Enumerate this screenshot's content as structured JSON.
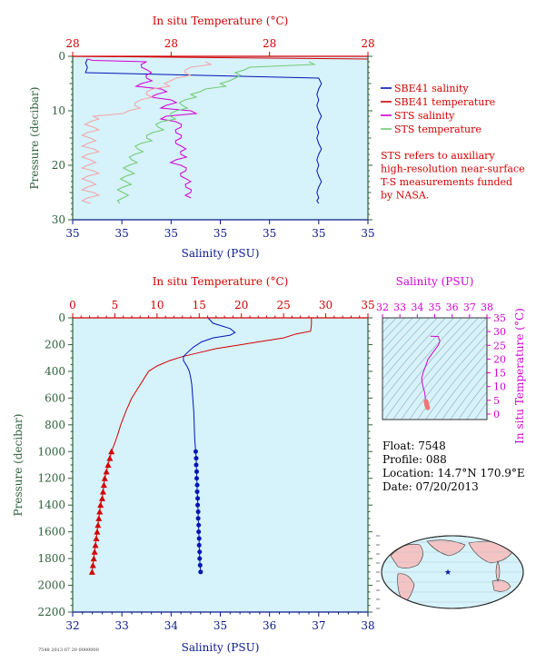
{
  "colors": {
    "bg": "#d6f2fb",
    "red": "#d40000",
    "blue": "#0015b5",
    "magenta": "#d400d4",
    "green": "#6fcb6f",
    "pink": "#f4a4a4",
    "axis_green": "#2e5f3a",
    "axis_blue": "#0a1a8a",
    "land": "#f4c4c4"
  },
  "legend": {
    "items": [
      {
        "label": "SBE41 salinity",
        "color": "#0015b5"
      },
      {
        "label": "SBE41 temperature",
        "color": "#d40000"
      },
      {
        "label": "STS salinity",
        "color": "#d400d4"
      },
      {
        "label": "STS temperature",
        "color": "#6fcb6f"
      }
    ],
    "note": [
      "STS refers to auxiliary",
      "high-resolution near-surface",
      "T-S measurements funded",
      "by NASA."
    ]
  },
  "float_info": {
    "float": "Float: 7548",
    "profile": "Profile: 088",
    "location": "Location: 14.7°N 170.9°E",
    "date": "Date: 07/20/2013"
  },
  "credit": "7548 2013 07 20 0000000",
  "chart_data": [
    {
      "type": "line",
      "id": "near-surface",
      "top_label": "In situ Temperature (°C)",
      "bottom_label": "Salinity (PSU)",
      "ylabel": "Pressure (decibar)",
      "y_ticks": [
        "0",
        "10",
        "20",
        "30"
      ],
      "ylim": [
        0,
        30
      ],
      "top_ticks": [
        "28",
        "28",
        "28",
        "28"
      ],
      "bottom_ticks": [
        "35",
        "35",
        "35",
        "35",
        "35",
        "35",
        "35"
      ],
      "temp_range": [
        27.95,
        28.95
      ],
      "sal_range": [
        34.95,
        35.55
      ],
      "series": [
        {
          "name": "SBE41 salinity",
          "axis": "salinity",
          "y": [
            0.5,
            2,
            4,
            6,
            8,
            10,
            12,
            14,
            16,
            18,
            20,
            22,
            24,
            26,
            27
          ],
          "x": [
            34.98,
            34.98,
            35.45,
            35.45,
            35.45,
            35.45,
            35.45,
            35.45,
            35.45,
            35.45,
            35.45,
            35.45,
            35.45,
            35.45,
            35.45
          ]
        },
        {
          "name": "SBE41 temperature",
          "axis": "temperature",
          "y": [
            0,
            0.5
          ],
          "x": [
            27.95,
            28.95
          ]
        },
        {
          "name": "STS salinity",
          "axis": "salinity",
          "y": [
            0.5,
            1,
            2,
            3,
            4,
            5,
            6,
            7,
            8,
            9,
            10,
            11,
            12,
            13,
            14,
            15,
            16,
            17,
            18,
            19,
            20,
            21,
            22,
            23,
            24,
            25,
            26
          ],
          "x": [
            34.98,
            35.1,
            35.09,
            35.11,
            35.1,
            35.09,
            35.13,
            35.12,
            35.15,
            35.14,
            35.19,
            35.14,
            35.16,
            35.17,
            35.16,
            35.17,
            35.16,
            35.18,
            35.17,
            35.16,
            35.17,
            35.18,
            35.17,
            35.19,
            35.18,
            35.19,
            35.19
          ]
        },
        {
          "name": "STS temperature",
          "axis": "temperature",
          "y": [
            1,
            2,
            3,
            4,
            5,
            6,
            7,
            8,
            9,
            10,
            11,
            12,
            13,
            14,
            15,
            16,
            17,
            18,
            19,
            20,
            21,
            22,
            23,
            24,
            25,
            26,
            27
          ],
          "x": [
            28.75,
            28.55,
            28.5,
            28.5,
            28.45,
            28.4,
            28.35,
            28.33,
            28.32,
            28.3,
            28.28,
            28.25,
            28.24,
            28.22,
            28.2,
            28.18,
            28.17,
            28.16,
            28.15,
            28.14,
            28.14,
            28.13,
            28.13,
            28.12,
            28.12,
            28.12,
            28.11
          ]
        },
        {
          "name": "STS temperature (pink)",
          "axis": "temperature",
          "y": [
            1,
            2,
            3,
            4,
            5,
            6,
            7,
            8,
            9,
            10,
            11,
            12,
            13,
            14,
            15,
            16,
            17,
            18,
            19,
            20,
            21,
            22,
            23,
            24,
            25,
            26,
            27
          ],
          "x": [
            28.4,
            28.35,
            28.33,
            28.3,
            28.26,
            28.22,
            28.2,
            28.18,
            28.16,
            28.14,
            28.02,
            28.01,
            28.02,
            28.0,
            28.01,
            28.0,
            28.02,
            28.0,
            28.01,
            28.0,
            28.02,
            28.0,
            28.01,
            28.0,
            28.02,
            28.0,
            28.01
          ]
        }
      ]
    },
    {
      "type": "line",
      "id": "full-profile",
      "top_label": "In situ Temperature (°C)",
      "bottom_label": "Salinity (PSU)",
      "ylabel": "Pressure (decibar)",
      "y_ticks": [
        "0",
        "200",
        "400",
        "600",
        "800",
        "1000",
        "1200",
        "1400",
        "1600",
        "1800",
        "2000",
        "2200"
      ],
      "ylim": [
        0,
        2200
      ],
      "top_ticks": [
        "0",
        "5",
        "10",
        "15",
        "20",
        "25",
        "30",
        "35"
      ],
      "temp_range": [
        0,
        35
      ],
      "bottom_ticks": [
        "32",
        "33",
        "34",
        "35",
        "36",
        "37",
        "38"
      ],
      "sal_range": [
        32,
        38
      ],
      "salinity": {
        "p": [
          0,
          40,
          80,
          110,
          130,
          150,
          180,
          220,
          260,
          290,
          320,
          360,
          400,
          450,
          500,
          600,
          700,
          800,
          900,
          1000
        ],
        "s": [
          34.75,
          34.85,
          35.2,
          35.3,
          35.2,
          34.85,
          34.62,
          34.45,
          34.33,
          34.25,
          34.25,
          34.32,
          34.37,
          34.4,
          34.42,
          34.44,
          34.46,
          34.47,
          34.48,
          34.5
        ]
      },
      "salinity_points": {
        "p": [
          1000,
          1050,
          1100,
          1150,
          1200,
          1250,
          1300,
          1350,
          1400,
          1450,
          1500,
          1550,
          1600,
          1650,
          1700,
          1750,
          1800,
          1850,
          1900
        ],
        "s": [
          34.5,
          34.51,
          34.51,
          34.52,
          34.52,
          34.53,
          34.53,
          34.54,
          34.54,
          34.55,
          34.55,
          34.56,
          34.56,
          34.57,
          34.57,
          34.58,
          34.58,
          34.59,
          34.6
        ]
      },
      "temperature": {
        "p": [
          0,
          50,
          100,
          120,
          150,
          180,
          200,
          230,
          260,
          290,
          320,
          360,
          400,
          450,
          500,
          600,
          700,
          800,
          900,
          1000
        ],
        "t": [
          28.3,
          28.3,
          28.2,
          26.5,
          25.0,
          22.0,
          20.0,
          17.0,
          15.0,
          13.0,
          11.5,
          10.0,
          9.0,
          8.5,
          8.0,
          7.0,
          6.3,
          5.7,
          5.2,
          4.6
        ]
      },
      "temperature_points": {
        "p": [
          1000,
          1050,
          1100,
          1150,
          1200,
          1250,
          1300,
          1350,
          1400,
          1450,
          1500,
          1550,
          1600,
          1650,
          1700,
          1750,
          1800,
          1850,
          1900
        ],
        "t": [
          4.6,
          4.4,
          4.2,
          4.0,
          3.8,
          3.7,
          3.6,
          3.5,
          3.3,
          3.2,
          3.1,
          3.0,
          2.9,
          2.8,
          2.7,
          2.6,
          2.5,
          2.4,
          2.3
        ]
      }
    },
    {
      "type": "scatter",
      "id": "ts-diagram",
      "top_label": "Salinity (PSU)",
      "right_label": "In situ Temperature (°C)",
      "top_ticks": [
        "32",
        "33",
        "34",
        "35",
        "36",
        "37",
        "38"
      ],
      "sal_range": [
        32,
        38
      ],
      "right_ticks": [
        "0",
        "5",
        "10",
        "15",
        "20",
        "25",
        "30",
        "35"
      ],
      "temp_range": [
        -2,
        35
      ],
      "trace": {
        "s": [
          34.75,
          34.85,
          35.2,
          35.3,
          35.2,
          34.85,
          34.62,
          34.45,
          34.33,
          34.25,
          34.32,
          34.4,
          34.44,
          34.47,
          34.5
        ],
        "t": [
          28.3,
          28.3,
          28.2,
          26.5,
          25.0,
          22.0,
          20.0,
          17.0,
          15.0,
          13.0,
          10.0,
          8.5,
          7.0,
          5.7,
          4.6
        ]
      },
      "points": {
        "s": [
          34.5,
          34.51,
          34.52,
          34.53,
          34.54,
          34.55,
          34.56,
          34.57,
          34.58,
          34.59,
          34.6
        ],
        "t": [
          4.6,
          4.4,
          4.0,
          3.7,
          3.5,
          3.2,
          3.0,
          2.8,
          2.6,
          2.4,
          2.3
        ]
      }
    }
  ],
  "map": {
    "marker_label": "float-position"
  }
}
